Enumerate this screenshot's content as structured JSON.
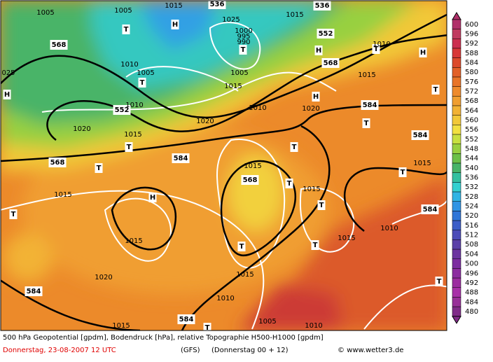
{
  "map": {
    "labels": [
      "568",
      "552",
      "536",
      "536",
      "552",
      "568",
      "584",
      "584",
      "568",
      "584",
      "568",
      "584",
      "584",
      "584",
      "H",
      "H",
      "H",
      "H",
      "H",
      "H",
      "T",
      "T",
      "T",
      "T",
      "T",
      "T",
      "T",
      "T",
      "T",
      "T",
      "T",
      "T",
      "T",
      "T",
      "T",
      "T",
      "T",
      "1005",
      "1005",
      "1015",
      "1025",
      "1000",
      "995",
      "990",
      "1010",
      "1005",
      "1010",
      "1015",
      "1020",
      "1020",
      "1015",
      "1015",
      "1015",
      "1015",
      "1020",
      "1015",
      "1010",
      "1015",
      "1005",
      "1010",
      "1010",
      "1015",
      "1015",
      "1020",
      "1010",
      "1015",
      "1005",
      "1015",
      "1010",
      "1015",
      "025"
    ],
    "colorbar": {
      "labels": [
        600,
        596,
        592,
        588,
        584,
        580,
        576,
        572,
        568,
        564,
        560,
        556,
        552,
        548,
        544,
        540,
        536,
        532,
        528,
        524,
        520,
        516,
        512,
        508,
        504,
        500,
        496,
        492,
        488,
        484,
        480
      ],
      "colors": [
        "#b0306a",
        "#c03a60",
        "#cc3050",
        "#d83838",
        "#dc4a2c",
        "#e26028",
        "#e87428",
        "#ee8a2c",
        "#f09e30",
        "#f2b234",
        "#f2c838",
        "#f2e040",
        "#c8e040",
        "#98d040",
        "#6cc048",
        "#48b468",
        "#34c0a0",
        "#34d0d0",
        "#30b4e4",
        "#3094e4",
        "#3076d8",
        "#3c5ec8",
        "#4c4cb8",
        "#5c40a8",
        "#6c34a0",
        "#7c2ca0",
        "#8c2ca0",
        "#9c2ca0",
        "#a830a8",
        "#983098",
        "#802c88"
      ]
    },
    "footer": {
      "line1": "500 hPa Geopotential [gpdm], Bodendruck [hPa], relative Topographie H500-H1000 [gpdm]",
      "date": "Donnerstag, 23-08-2007  12 UTC",
      "model": "(GFS)",
      "run": "(Donnerstag 00 + 12)",
      "site": "© www.wetter3.de"
    }
  }
}
